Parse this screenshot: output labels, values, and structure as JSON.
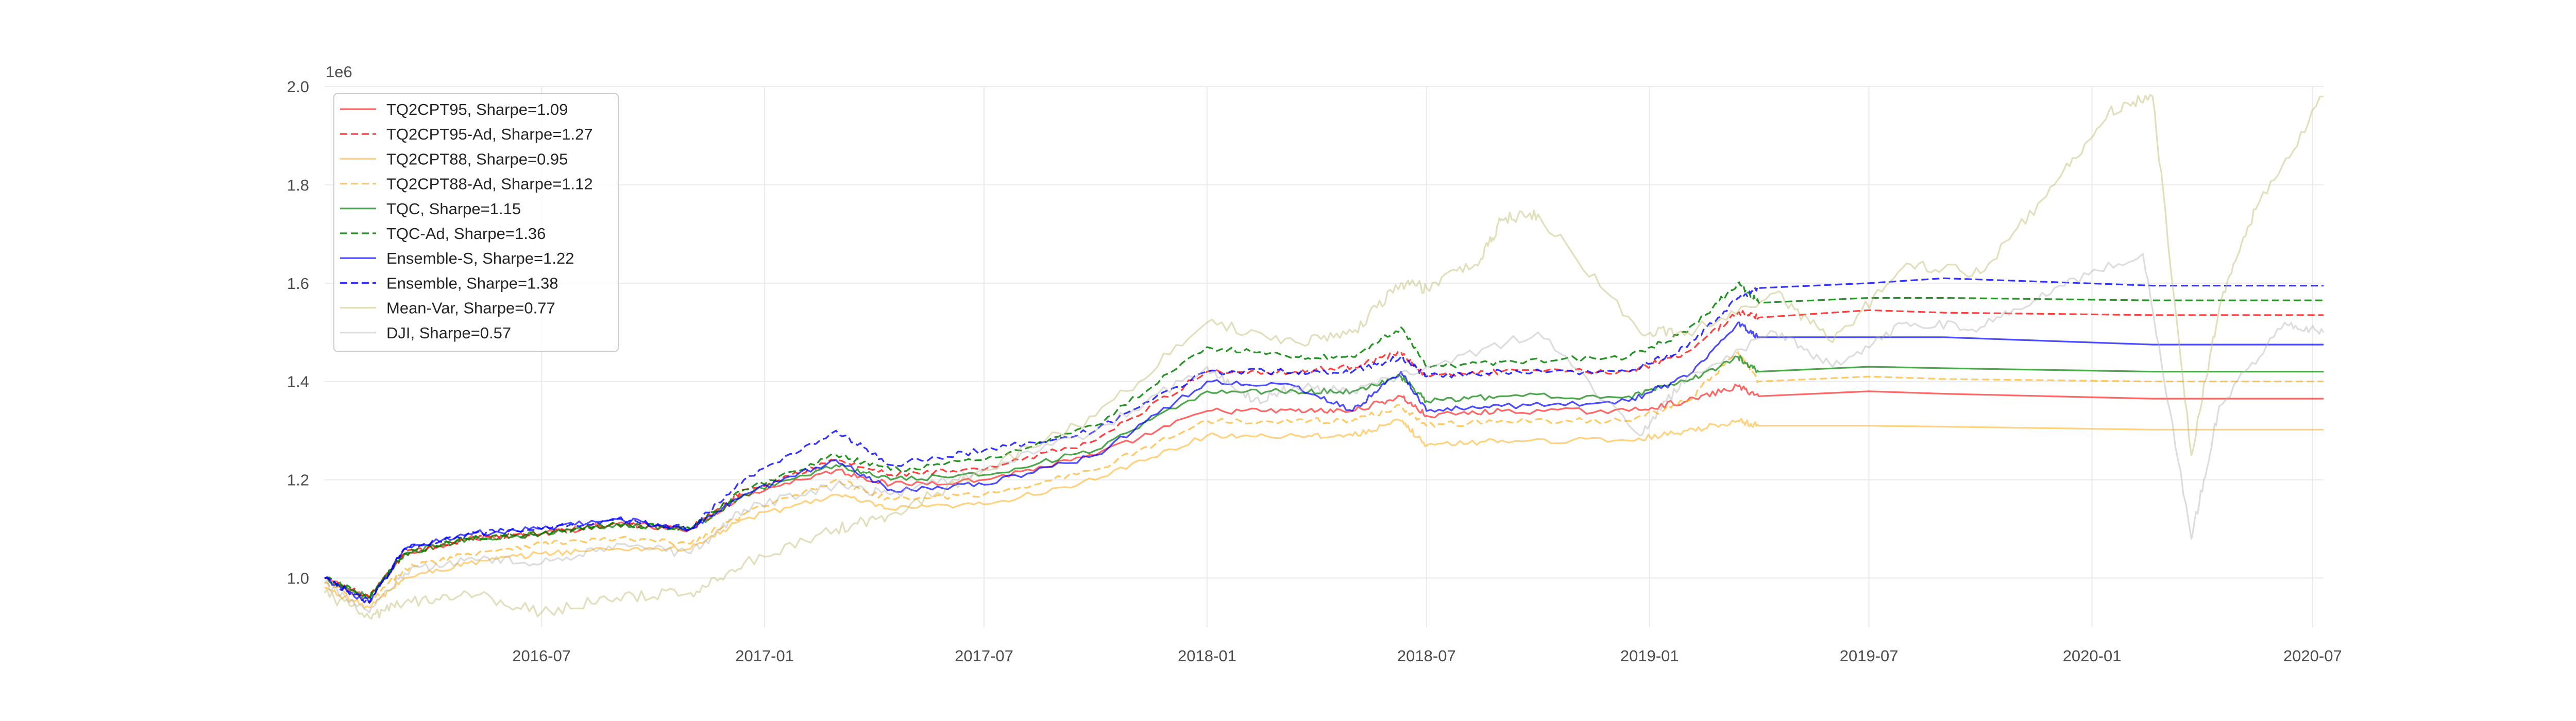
{
  "chart_data": {
    "type": "line",
    "title": "",
    "xlabel": "",
    "ylabel": "",
    "y_offset_label": "1e6",
    "y_scale_factor": 1000000,
    "xlim": [
      "2016-01-04",
      "2020-07-10"
    ],
    "ylim": [
      0.9,
      2.0
    ],
    "y_ticks": [
      1.0,
      1.2,
      1.4,
      1.6,
      1.8,
      2.0
    ],
    "y_tick_labels": [
      "1.0",
      "1.2",
      "1.4",
      "1.6",
      "1.8",
      "2.0"
    ],
    "x_ticks": [
      "2016-07-01",
      "2017-01-01",
      "2017-07-01",
      "2018-01-01",
      "2018-07-01",
      "2019-01-01",
      "2019-07-01",
      "2020-01-01",
      "2020-07-01"
    ],
    "x_tick_labels": [
      "2016-07",
      "2017-01",
      "2017-07",
      "2018-01",
      "2018-07",
      "2019-01",
      "2019-07",
      "2020-01",
      "2020-07"
    ],
    "grid": true,
    "legend_position": "top-left",
    "series": [
      {
        "name": "TQ2CPT95, Sharpe=1.09",
        "color": "#ff0000",
        "dash": "solid",
        "opacity": 0.6,
        "x": [
          "2016-01-04",
          "2016-02-10",
          "2016-03-10",
          "2016-05-01",
          "2016-07-01",
          "2016-09-01",
          "2016-11-01",
          "2016-12-15",
          "2017-03-01",
          "2017-04-15",
          "2017-07-01",
          "2017-10-01",
          "2018-01-01",
          "2018-03-15",
          "2018-05-01",
          "2018-06-10",
          "2018-07-01",
          "2018-09-01",
          "2018-12-15",
          "2019-02-01",
          "2019-03-15",
          "2019-04-01",
          "2019-07-01",
          "2019-09-01",
          "2020-02-20",
          "2020-07-10"
        ],
        "y": [
          1.0,
          0.96,
          1.05,
          1.08,
          1.09,
          1.11,
          1.1,
          1.17,
          1.22,
          1.19,
          1.2,
          1.25,
          1.34,
          1.34,
          1.34,
          1.37,
          1.33,
          1.34,
          1.34,
          1.36,
          1.39,
          1.37,
          1.38,
          1.375,
          1.365,
          1.365
        ]
      },
      {
        "name": "TQ2CPT95-Ad, Sharpe=1.27",
        "color": "#ff0000",
        "dash": "dashed",
        "opacity": 0.75,
        "x": [
          "2016-01-04",
          "2016-02-10",
          "2016-03-10",
          "2016-05-01",
          "2016-07-01",
          "2016-09-01",
          "2016-11-01",
          "2016-12-15",
          "2017-03-01",
          "2017-04-15",
          "2017-07-01",
          "2017-10-01",
          "2018-01-01",
          "2018-03-15",
          "2018-05-01",
          "2018-06-10",
          "2018-07-01",
          "2018-09-01",
          "2018-12-15",
          "2019-02-01",
          "2019-03-15",
          "2019-04-01",
          "2019-07-01",
          "2019-09-01",
          "2020-02-20",
          "2020-07-10"
        ],
        "y": [
          1.0,
          0.96,
          1.05,
          1.08,
          1.09,
          1.11,
          1.1,
          1.18,
          1.24,
          1.21,
          1.22,
          1.28,
          1.42,
          1.42,
          1.43,
          1.46,
          1.41,
          1.42,
          1.42,
          1.46,
          1.54,
          1.53,
          1.545,
          1.54,
          1.535,
          1.535
        ]
      },
      {
        "name": "TQ2CPT88, Sharpe=0.95",
        "color": "#ffa500",
        "dash": "solid",
        "opacity": 0.5,
        "x": [
          "2016-01-04",
          "2016-02-10",
          "2016-03-10",
          "2016-05-01",
          "2016-07-01",
          "2016-09-01",
          "2016-11-01",
          "2016-12-15",
          "2017-03-01",
          "2017-04-15",
          "2017-07-01",
          "2017-10-01",
          "2018-01-01",
          "2018-03-15",
          "2018-05-01",
          "2018-06-10",
          "2018-07-01",
          "2018-09-01",
          "2018-12-15",
          "2019-02-01",
          "2019-03-15",
          "2019-04-01",
          "2019-07-01",
          "2019-09-01",
          "2020-02-20",
          "2020-07-10"
        ],
        "y": [
          0.98,
          0.94,
          1.0,
          1.03,
          1.05,
          1.06,
          1.06,
          1.12,
          1.17,
          1.14,
          1.15,
          1.2,
          1.29,
          1.29,
          1.29,
          1.32,
          1.27,
          1.28,
          1.28,
          1.3,
          1.32,
          1.31,
          1.31,
          1.308,
          1.302,
          1.302
        ]
      },
      {
        "name": "TQ2CPT88-Ad, Sharpe=1.12",
        "color": "#ffa500",
        "dash": "dashed",
        "opacity": 0.6,
        "x": [
          "2016-01-04",
          "2016-02-10",
          "2016-03-10",
          "2016-05-01",
          "2016-07-01",
          "2016-09-01",
          "2016-11-01",
          "2016-12-15",
          "2017-03-01",
          "2017-04-15",
          "2017-07-01",
          "2017-10-01",
          "2018-01-01",
          "2018-03-15",
          "2018-05-01",
          "2018-06-10",
          "2018-07-01",
          "2018-09-01",
          "2018-12-15",
          "2019-02-01",
          "2019-03-15",
          "2019-04-01",
          "2019-07-01",
          "2019-09-01",
          "2020-02-20",
          "2020-07-10"
        ],
        "y": [
          0.99,
          0.95,
          1.02,
          1.05,
          1.07,
          1.08,
          1.07,
          1.13,
          1.2,
          1.16,
          1.17,
          1.22,
          1.32,
          1.32,
          1.32,
          1.35,
          1.31,
          1.32,
          1.32,
          1.36,
          1.46,
          1.4,
          1.41,
          1.405,
          1.4,
          1.4
        ]
      },
      {
        "name": "TQC, Sharpe=1.15",
        "color": "#008000",
        "dash": "solid",
        "opacity": 0.7,
        "x": [
          "2016-01-04",
          "2016-02-10",
          "2016-03-10",
          "2016-05-01",
          "2016-07-01",
          "2016-09-01",
          "2016-11-01",
          "2016-12-15",
          "2017-03-01",
          "2017-04-15",
          "2017-07-01",
          "2017-10-01",
          "2018-01-01",
          "2018-03-15",
          "2018-05-01",
          "2018-06-10",
          "2018-07-01",
          "2018-09-01",
          "2018-12-15",
          "2019-02-01",
          "2019-03-15",
          "2019-04-01",
          "2019-07-01",
          "2019-09-01",
          "2020-02-20",
          "2020-07-10"
        ],
        "y": [
          1.0,
          0.96,
          1.05,
          1.08,
          1.09,
          1.11,
          1.1,
          1.17,
          1.23,
          1.2,
          1.21,
          1.26,
          1.38,
          1.38,
          1.38,
          1.41,
          1.36,
          1.37,
          1.37,
          1.4,
          1.45,
          1.42,
          1.43,
          1.427,
          1.42,
          1.42
        ]
      },
      {
        "name": "TQC-Ad, Sharpe=1.36",
        "color": "#008000",
        "dash": "dashed",
        "opacity": 0.85,
        "x": [
          "2016-01-04",
          "2016-02-10",
          "2016-03-10",
          "2016-05-01",
          "2016-07-01",
          "2016-09-01",
          "2016-11-01",
          "2016-12-15",
          "2017-03-01",
          "2017-04-15",
          "2017-07-01",
          "2017-10-01",
          "2018-01-01",
          "2018-03-15",
          "2018-05-01",
          "2018-06-10",
          "2018-07-01",
          "2018-09-01",
          "2018-12-15",
          "2019-02-01",
          "2019-03-15",
          "2019-04-01",
          "2019-07-01",
          "2019-09-01",
          "2020-02-20",
          "2020-07-10"
        ],
        "y": [
          1.0,
          0.96,
          1.05,
          1.08,
          1.09,
          1.11,
          1.1,
          1.18,
          1.25,
          1.22,
          1.24,
          1.31,
          1.47,
          1.45,
          1.45,
          1.51,
          1.43,
          1.44,
          1.45,
          1.5,
          1.6,
          1.56,
          1.57,
          1.57,
          1.565,
          1.565
        ]
      },
      {
        "name": "Ensemble-S, Sharpe=1.22",
        "color": "#0000ff",
        "dash": "solid",
        "opacity": 0.7,
        "x": [
          "2016-01-04",
          "2016-02-10",
          "2016-03-10",
          "2016-05-01",
          "2016-07-01",
          "2016-09-01",
          "2016-11-01",
          "2016-12-15",
          "2017-03-01",
          "2017-04-15",
          "2017-07-01",
          "2017-10-01",
          "2018-01-01",
          "2018-03-15",
          "2018-05-01",
          "2018-06-10",
          "2018-07-01",
          "2018-09-01",
          "2018-12-15",
          "2019-02-01",
          "2019-03-15",
          "2019-04-01",
          "2019-07-01",
          "2019-09-01",
          "2020-02-20",
          "2020-07-10"
        ],
        "y": [
          1.0,
          0.95,
          1.06,
          1.09,
          1.1,
          1.12,
          1.1,
          1.17,
          1.24,
          1.18,
          1.19,
          1.25,
          1.4,
          1.39,
          1.34,
          1.42,
          1.34,
          1.35,
          1.36,
          1.41,
          1.52,
          1.49,
          1.49,
          1.49,
          1.475,
          1.475
        ]
      },
      {
        "name": "Ensemble, Sharpe=1.38",
        "color": "#0000ff",
        "dash": "dashed",
        "opacity": 0.8,
        "x": [
          "2016-01-04",
          "2016-02-10",
          "2016-03-10",
          "2016-05-01",
          "2016-07-01",
          "2016-09-01",
          "2016-11-01",
          "2016-12-15",
          "2017-03-01",
          "2017-04-15",
          "2017-07-01",
          "2017-10-01",
          "2018-01-01",
          "2018-03-15",
          "2018-05-01",
          "2018-06-10",
          "2018-07-01",
          "2018-09-01",
          "2018-12-15",
          "2019-02-01",
          "2019-03-15",
          "2019-04-01",
          "2019-07-01",
          "2019-09-01",
          "2020-02-20",
          "2020-07-10"
        ],
        "y": [
          1.0,
          0.95,
          1.06,
          1.09,
          1.1,
          1.12,
          1.1,
          1.2,
          1.3,
          1.23,
          1.26,
          1.3,
          1.42,
          1.42,
          1.42,
          1.45,
          1.41,
          1.42,
          1.42,
          1.47,
          1.57,
          1.59,
          1.6,
          1.61,
          1.595,
          1.595
        ]
      },
      {
        "name": "Mean-Var, Sharpe=0.77",
        "color": "#bdb76b",
        "dash": "solid",
        "opacity": 0.45,
        "x": [
          "2016-01-04",
          "2016-02-10",
          "2016-03-10",
          "2016-05-01",
          "2016-07-01",
          "2016-09-01",
          "2016-11-01",
          "2016-12-15",
          "2017-03-01",
          "2017-04-15",
          "2017-07-01",
          "2017-10-01",
          "2018-01-01",
          "2018-03-15",
          "2018-05-01",
          "2018-06-10",
          "2018-07-01",
          "2018-08-15",
          "2018-09-01",
          "2018-10-01",
          "2018-12-24",
          "2019-02-01",
          "2019-04-15",
          "2019-06-01",
          "2019-08-01",
          "2019-10-01",
          "2019-12-01",
          "2020-01-15",
          "2020-02-20",
          "2020-03-23",
          "2020-04-15",
          "2020-05-15",
          "2020-07-10"
        ],
        "y": [
          0.97,
          0.92,
          0.95,
          0.97,
          0.93,
          0.96,
          0.97,
          1.03,
          1.1,
          1.13,
          1.22,
          1.33,
          1.52,
          1.48,
          1.5,
          1.6,
          1.59,
          1.65,
          1.73,
          1.74,
          1.5,
          1.5,
          1.58,
          1.48,
          1.64,
          1.62,
          1.8,
          1.95,
          1.98,
          1.25,
          1.55,
          1.75,
          1.98
        ]
      },
      {
        "name": "DJI, Sharpe=0.57",
        "color": "#a9a9a9",
        "dash": "solid",
        "opacity": 0.4,
        "x": [
          "2016-01-04",
          "2016-02-10",
          "2016-03-10",
          "2016-05-01",
          "2016-07-01",
          "2016-09-01",
          "2016-11-01",
          "2016-12-15",
          "2017-03-01",
          "2017-04-15",
          "2017-07-01",
          "2017-10-01",
          "2018-01-01",
          "2018-02-08",
          "2018-03-15",
          "2018-05-01",
          "2018-07-01",
          "2018-10-01",
          "2018-12-24",
          "2019-02-01",
          "2019-04-15",
          "2019-06-01",
          "2019-08-01",
          "2019-10-01",
          "2019-12-01",
          "2020-02-12",
          "2020-03-23",
          "2020-04-15",
          "2020-06-08",
          "2020-07-10"
        ],
        "y": [
          0.99,
          0.93,
          1.01,
          1.04,
          1.03,
          1.07,
          1.05,
          1.14,
          1.19,
          1.17,
          1.22,
          1.3,
          1.43,
          1.36,
          1.39,
          1.38,
          1.43,
          1.5,
          1.29,
          1.41,
          1.5,
          1.43,
          1.52,
          1.51,
          1.59,
          1.66,
          1.08,
          1.35,
          1.52,
          1.5
        ]
      }
    ]
  }
}
